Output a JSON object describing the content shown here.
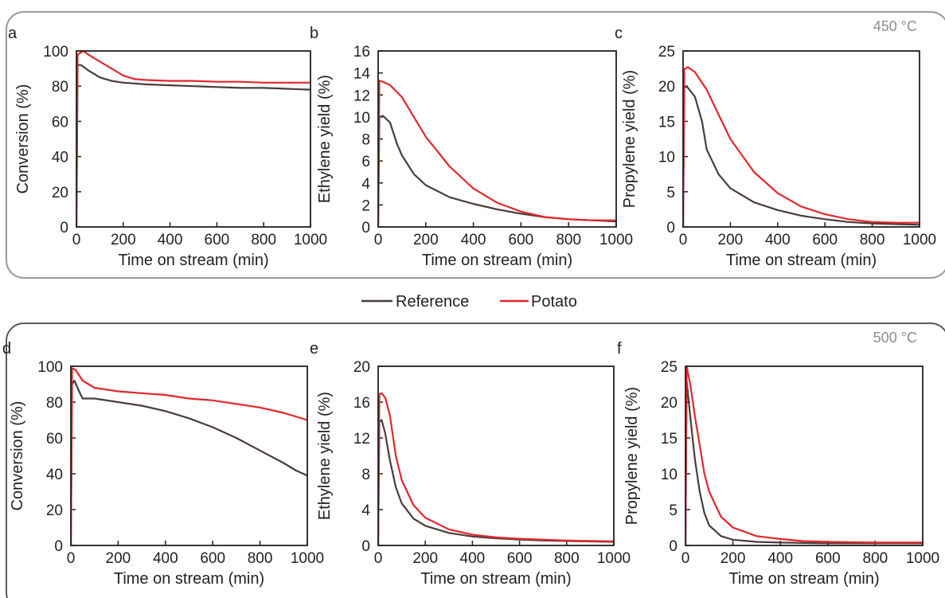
{
  "legend": [
    {
      "label": "Reference",
      "color": "#4a3c3c"
    },
    {
      "label": "Potato",
      "color": "#e3262b"
    }
  ],
  "groups": [
    {
      "temperature": "450 °C",
      "border_color": "#9a9a9a",
      "temp_color": "#8c8c8c"
    },
    {
      "temperature": "500 °C",
      "border_color": "#5a5a5a",
      "temp_color": "#231f20"
    }
  ],
  "chart_data": [
    {
      "type": "line",
      "panel": "a",
      "xlabel": "Time on stream (min)",
      "ylabel": "Conversion (%)",
      "xlim": [
        0,
        1000
      ],
      "ylim": [
        0,
        100
      ],
      "xticks": [
        0,
        200,
        400,
        600,
        800,
        1000
      ],
      "yticks": [
        0,
        20,
        40,
        60,
        80,
        100
      ],
      "series": [
        {
          "name": "Reference",
          "color": "#4a3c3c",
          "x": [
            0,
            5,
            20,
            50,
            100,
            150,
            200,
            250,
            300,
            400,
            500,
            600,
            700,
            800,
            900,
            1000
          ],
          "y": [
            0,
            92,
            92,
            89,
            85,
            83,
            82,
            81.5,
            81,
            80.5,
            80,
            79.5,
            79,
            79,
            78.5,
            78
          ]
        },
        {
          "name": "Potato",
          "color": "#e3262b",
          "x": [
            0,
            5,
            30,
            50,
            100,
            150,
            200,
            250,
            300,
            400,
            500,
            600,
            700,
            800,
            900,
            1000
          ],
          "y": [
            0,
            98,
            100,
            98,
            94,
            90,
            86,
            84,
            83.5,
            83,
            83,
            82.5,
            82.5,
            82,
            82,
            82
          ]
        }
      ]
    },
    {
      "type": "line",
      "panel": "b",
      "xlabel": "Time on stream (min)",
      "ylabel": "Ethylene yield (%)",
      "xlim": [
        0,
        1000
      ],
      "ylim": [
        0,
        16
      ],
      "xticks": [
        0,
        200,
        400,
        600,
        800,
        1000
      ],
      "yticks": [
        0,
        2,
        4,
        6,
        8,
        10,
        12,
        14,
        16
      ],
      "series": [
        {
          "name": "Reference",
          "color": "#4a3c3c",
          "x": [
            0,
            5,
            20,
            50,
            80,
            100,
            150,
            200,
            300,
            400,
            500,
            600,
            700,
            800,
            900,
            1000
          ],
          "y": [
            0,
            10,
            10.1,
            9.5,
            7.5,
            6.5,
            4.8,
            3.8,
            2.7,
            2.1,
            1.6,
            1.2,
            0.9,
            0.7,
            0.6,
            0.5
          ]
        },
        {
          "name": "Potato",
          "color": "#e3262b",
          "x": [
            0,
            5,
            20,
            50,
            100,
            150,
            200,
            300,
            400,
            500,
            600,
            700,
            800,
            900,
            1000
          ],
          "y": [
            0,
            13.3,
            13.2,
            12.9,
            11.8,
            10,
            8.2,
            5.5,
            3.5,
            2.2,
            1.4,
            0.9,
            0.7,
            0.6,
            0.6
          ]
        }
      ]
    },
    {
      "type": "line",
      "panel": "c",
      "xlabel": "Time on stream (min)",
      "ylabel": "Propylene yield (%)",
      "xlim": [
        0,
        1000
      ],
      "ylim": [
        0,
        25
      ],
      "xticks": [
        0,
        200,
        400,
        600,
        800,
        1000
      ],
      "yticks": [
        0,
        5,
        10,
        15,
        20,
        25
      ],
      "series": [
        {
          "name": "Reference",
          "color": "#4a3c3c",
          "x": [
            0,
            5,
            20,
            50,
            80,
            100,
            150,
            200,
            300,
            400,
            500,
            600,
            700,
            800,
            900,
            1000
          ],
          "y": [
            0,
            20,
            19.8,
            18.5,
            15,
            11,
            7.5,
            5.5,
            3.5,
            2.4,
            1.6,
            1.1,
            0.7,
            0.5,
            0.4,
            0.3
          ]
        },
        {
          "name": "Potato",
          "color": "#e3262b",
          "x": [
            0,
            5,
            20,
            50,
            100,
            150,
            200,
            300,
            400,
            500,
            600,
            700,
            800,
            900,
            1000
          ],
          "y": [
            0,
            22.4,
            22.7,
            22,
            19.5,
            16,
            12.5,
            7.8,
            4.8,
            2.9,
            1.8,
            1.1,
            0.7,
            0.6,
            0.6
          ]
        }
      ]
    },
    {
      "type": "line",
      "panel": "d",
      "xlabel": "Time on stream (min)",
      "ylabel": "Conversion (%)",
      "xlim": [
        0,
        1000
      ],
      "ylim": [
        0,
        100
      ],
      "xticks": [
        0,
        200,
        400,
        600,
        800,
        1000
      ],
      "yticks": [
        0,
        20,
        40,
        60,
        80,
        100
      ],
      "series": [
        {
          "name": "Reference",
          "color": "#4a3c3c",
          "x": [
            0,
            5,
            15,
            35,
            50,
            100,
            200,
            300,
            400,
            500,
            600,
            700,
            800,
            900,
            950,
            1000
          ],
          "y": [
            0,
            90,
            92,
            86,
            82,
            82,
            80,
            78,
            75,
            71,
            66,
            60,
            53,
            46,
            42,
            39
          ]
        },
        {
          "name": "Potato",
          "color": "#e3262b",
          "x": [
            0,
            5,
            20,
            50,
            100,
            200,
            300,
            400,
            500,
            600,
            700,
            800,
            900,
            1000
          ],
          "y": [
            0,
            99,
            98,
            92,
            88,
            86,
            85,
            84,
            82,
            81,
            79,
            77,
            74,
            70
          ]
        }
      ]
    },
    {
      "type": "line",
      "panel": "e",
      "xlabel": "Time on stream (min)",
      "ylabel": "Ethylene yield (%)",
      "xlim": [
        0,
        1000
      ],
      "ylim": [
        0,
        20
      ],
      "xticks": [
        0,
        200,
        400,
        600,
        800,
        1000
      ],
      "yticks": [
        0,
        4,
        8,
        12,
        16,
        20
      ],
      "series": [
        {
          "name": "Reference",
          "color": "#4a3c3c",
          "x": [
            0,
            5,
            15,
            30,
            50,
            75,
            100,
            150,
            200,
            300,
            400,
            500,
            600,
            700,
            800,
            900,
            1000
          ],
          "y": [
            0,
            13.8,
            14,
            12.5,
            9.5,
            6.5,
            4.7,
            3,
            2.2,
            1.4,
            1,
            0.8,
            0.65,
            0.55,
            0.5,
            0.45,
            0.4
          ]
        },
        {
          "name": "Potato",
          "color": "#e3262b",
          "x": [
            0,
            5,
            15,
            30,
            50,
            75,
            100,
            150,
            200,
            300,
            400,
            500,
            600,
            700,
            800,
            900,
            1000
          ],
          "y": [
            0,
            16.9,
            17,
            16.5,
            14.5,
            10,
            7.3,
            4.5,
            3.1,
            1.8,
            1.2,
            0.9,
            0.75,
            0.65,
            0.55,
            0.5,
            0.45
          ]
        }
      ]
    },
    {
      "type": "line",
      "panel": "f",
      "xlabel": "Time on stream (min)",
      "ylabel": "Propylene yield (%)",
      "xlim": [
        0,
        1000
      ],
      "ylim": [
        0,
        25
      ],
      "xticks": [
        0,
        200,
        400,
        600,
        800,
        1000
      ],
      "yticks": [
        0,
        5,
        10,
        15,
        20,
        25
      ],
      "series": [
        {
          "name": "Reference",
          "color": "#4a3c3c",
          "x": [
            0,
            5,
            20,
            40,
            60,
            80,
            100,
            150,
            200,
            300,
            400,
            500,
            600,
            800,
            1000
          ],
          "y": [
            0,
            23,
            18,
            12,
            7.5,
            4.5,
            2.8,
            1.3,
            0.8,
            0.5,
            0.4,
            0.35,
            0.3,
            0.3,
            0.3
          ]
        },
        {
          "name": "Potato",
          "color": "#e3262b",
          "x": [
            0,
            5,
            20,
            40,
            60,
            80,
            100,
            150,
            200,
            300,
            400,
            500,
            600,
            800,
            1000
          ],
          "y": [
            0,
            25,
            22.5,
            18,
            14,
            10,
            7.5,
            4,
            2.5,
            1.3,
            0.9,
            0.6,
            0.5,
            0.4,
            0.4
          ]
        }
      ]
    }
  ]
}
